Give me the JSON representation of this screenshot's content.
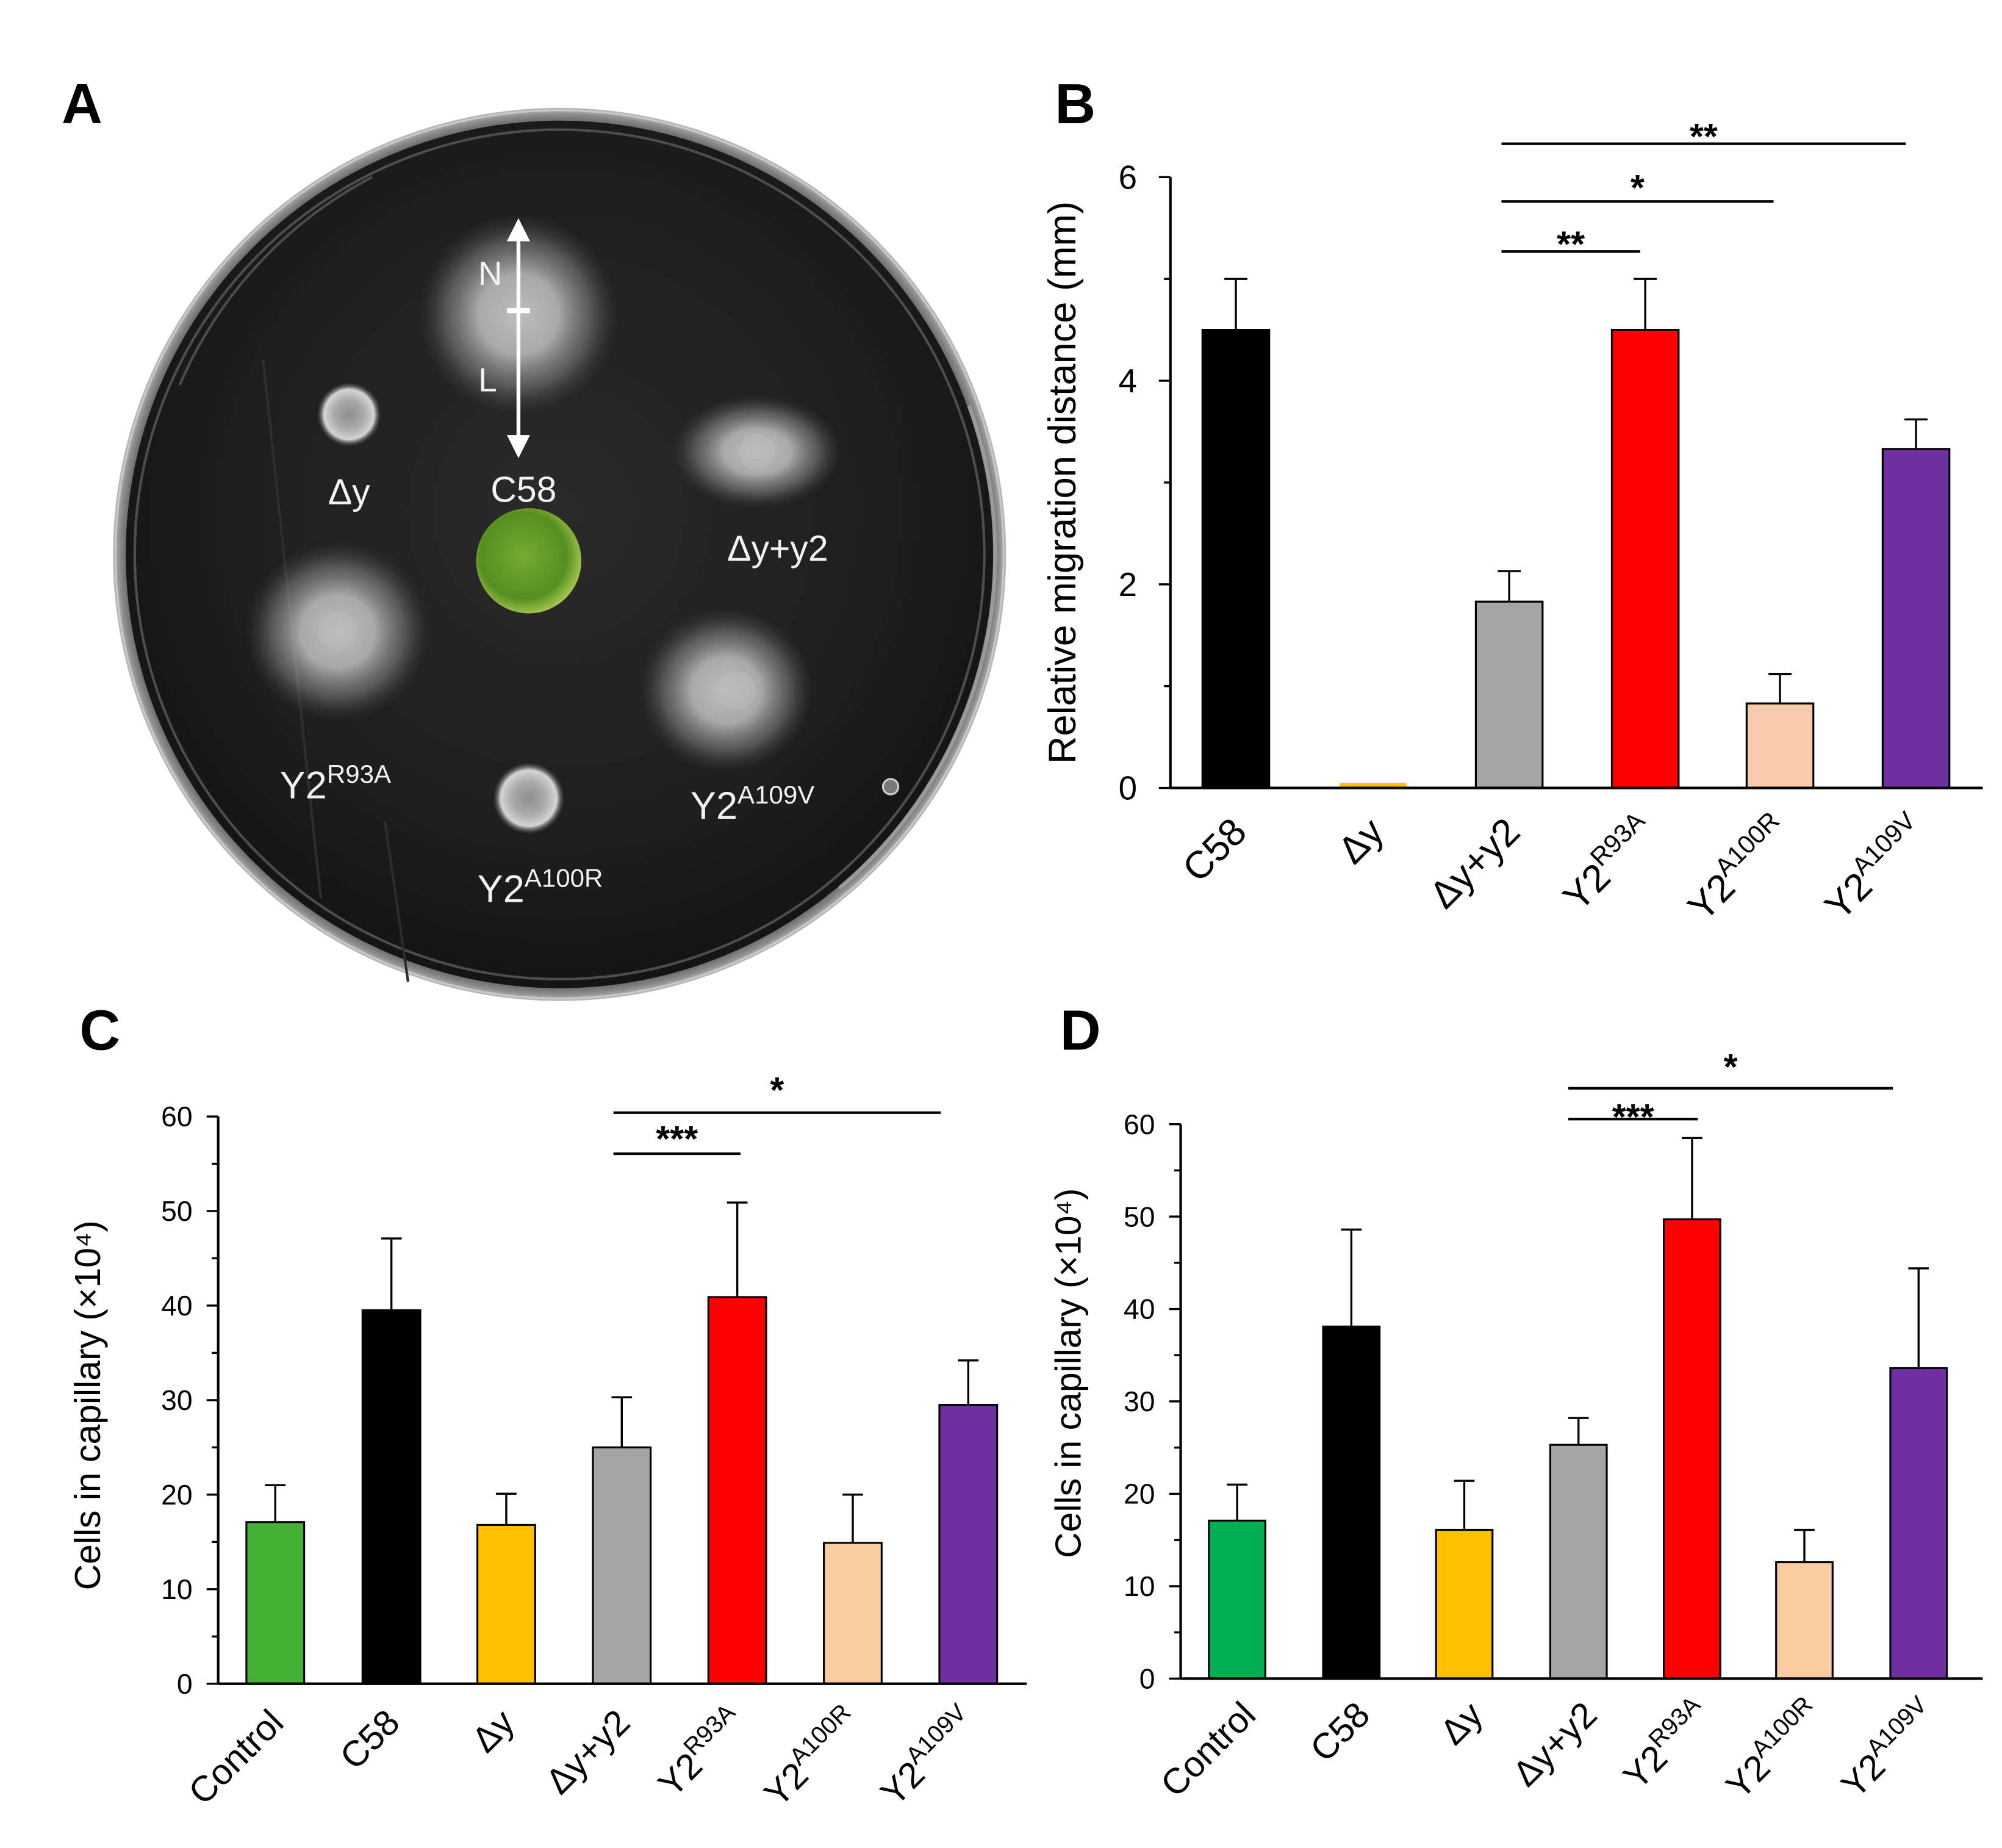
{
  "figure": {
    "background": "#ffffff"
  },
  "panel_a": {
    "letter": "A",
    "arrow_labels": {
      "top": "N",
      "bottom": "L"
    },
    "labels": {
      "c58": "C58",
      "delta_y": "Δy",
      "delta_y_y2": "Δy+y2",
      "y2_r93a": {
        "base": "Y2",
        "sup": "R93A"
      },
      "y2_a100r": {
        "base": "Y2",
        "sup": "A100R"
      },
      "y2_a109v": {
        "base": "Y2",
        "sup": "A109V"
      }
    },
    "colors": {
      "agar": "#1c1c1c",
      "halo": "#d9d9d9",
      "disk": "#5f9a26"
    }
  },
  "chart_data": [
    {
      "panel": "B",
      "type": "bar",
      "title": "",
      "ylabel": "Relative migration distance (mm)",
      "categories": [
        "C58",
        "Δy",
        "Δy+y2",
        "Y2R93A",
        "Y2A100R",
        "Y2A109V"
      ],
      "category_superscripts": [
        "",
        "",
        "",
        "R93A",
        "A100R",
        "A109V"
      ],
      "values": [
        4.5,
        0.05,
        1.83,
        4.5,
        0.83,
        3.33
      ],
      "errors": [
        0.5,
        0,
        0.3,
        0.5,
        0.29,
        0.29
      ],
      "colors": [
        "#000000",
        "#ffc000",
        "#a6a6a6",
        "#ff0000",
        "#f8cbad",
        "#7030a0"
      ],
      "ylim": [
        0,
        6
      ],
      "yticks": [
        0,
        2,
        4,
        6
      ],
      "grid": false,
      "significance": [
        {
          "between": [
            2,
            3
          ],
          "label": "**"
        },
        {
          "between": [
            2,
            4
          ],
          "label": "*"
        },
        {
          "between": [
            2,
            5
          ],
          "label": "**"
        }
      ]
    },
    {
      "panel": "C",
      "type": "bar",
      "title": "",
      "ylabel": "Cells in capillary (×10⁴)",
      "categories": [
        "Control",
        "C58",
        "Δy",
        "Δy+y2",
        "Y2R93A",
        "Y2A100R",
        "Y2A109V"
      ],
      "category_superscripts": [
        "",
        "",
        "",
        "",
        "R93A",
        "A100R",
        "A109V"
      ],
      "values": [
        17.1,
        39.5,
        16.8,
        25.0,
        40.9,
        14.9,
        29.5
      ],
      "errors": [
        3.9,
        7.6,
        3.3,
        5.3,
        10.0,
        5.1,
        4.7
      ],
      "colors": [
        "#45b035",
        "#000000",
        "#ffc000",
        "#a6a6a6",
        "#ff0000",
        "#f8cba0",
        "#7030a0"
      ],
      "ylim": [
        0,
        60
      ],
      "yticks": [
        0,
        10,
        20,
        30,
        40,
        50,
        60
      ],
      "grid": false,
      "significance": [
        {
          "between": [
            3,
            4
          ],
          "label": "***"
        },
        {
          "between": [
            3,
            6
          ],
          "label": "*"
        }
      ]
    },
    {
      "panel": "D",
      "type": "bar",
      "title": "",
      "ylabel": "Cells in capillary (×10⁴)",
      "categories": [
        "Control",
        "C58",
        "Δy",
        "Δy+y2",
        "Y2R93A",
        "Y2A100R",
        "Y2A109V"
      ],
      "category_superscripts": [
        "",
        "",
        "",
        "",
        "R93A",
        "A100R",
        "A109V"
      ],
      "values": [
        17.1,
        38.1,
        16.1,
        25.3,
        49.7,
        12.6,
        33.6
      ],
      "errors": [
        3.9,
        10.5,
        5.3,
        2.9,
        8.8,
        3.5,
        10.8
      ],
      "colors": [
        "#00b050",
        "#000000",
        "#ffc000",
        "#a6a6a6",
        "#ff0000",
        "#f8cba0",
        "#7030a0"
      ],
      "ylim": [
        0,
        60
      ],
      "yticks": [
        0,
        10,
        20,
        30,
        40,
        50,
        60
      ],
      "grid": false,
      "significance": [
        {
          "between": [
            3,
            4
          ],
          "label": "***"
        },
        {
          "between": [
            3,
            6
          ],
          "label": "*"
        }
      ]
    }
  ]
}
